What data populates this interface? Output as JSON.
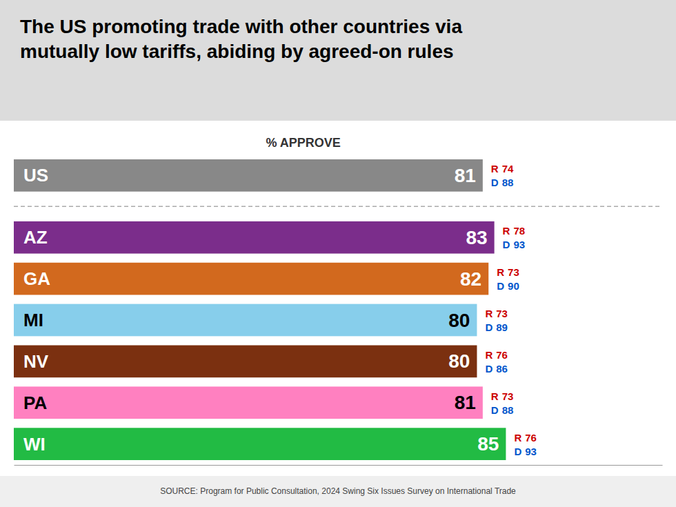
{
  "chart_data": {
    "type": "bar",
    "orientation": "horizontal",
    "title": "The US promoting trade with other countries via\nmutually low tariffs, abiding by agreed-on rules",
    "subtitle": "% APPROVE",
    "categories": [
      "US",
      "AZ",
      "GA",
      "MI",
      "NV",
      "PA",
      "WI"
    ],
    "values": [
      81,
      83,
      82,
      80,
      80,
      81,
      85
    ],
    "colors": [
      "#888888",
      "#7b2d8b",
      "#d2691e",
      "#87ceeb",
      "#7b3010",
      "#ff80c0",
      "#22bb44"
    ],
    "data_labels": true,
    "tick_labels": false,
    "xlim": [
      0,
      112
    ],
    "party_breakdown": [
      {
        "name": "R",
        "color": "#cc0000",
        "values": [
          74,
          78,
          73,
          73,
          76,
          73,
          76
        ]
      },
      {
        "name": "D",
        "color": "#0055cc",
        "values": [
          88,
          93,
          90,
          89,
          86,
          88,
          93
        ]
      }
    ],
    "annotations": [
      "SOURCE: Program for Public Consultation, 2024 Swing Six Issues Survey on International Trade"
    ]
  }
}
